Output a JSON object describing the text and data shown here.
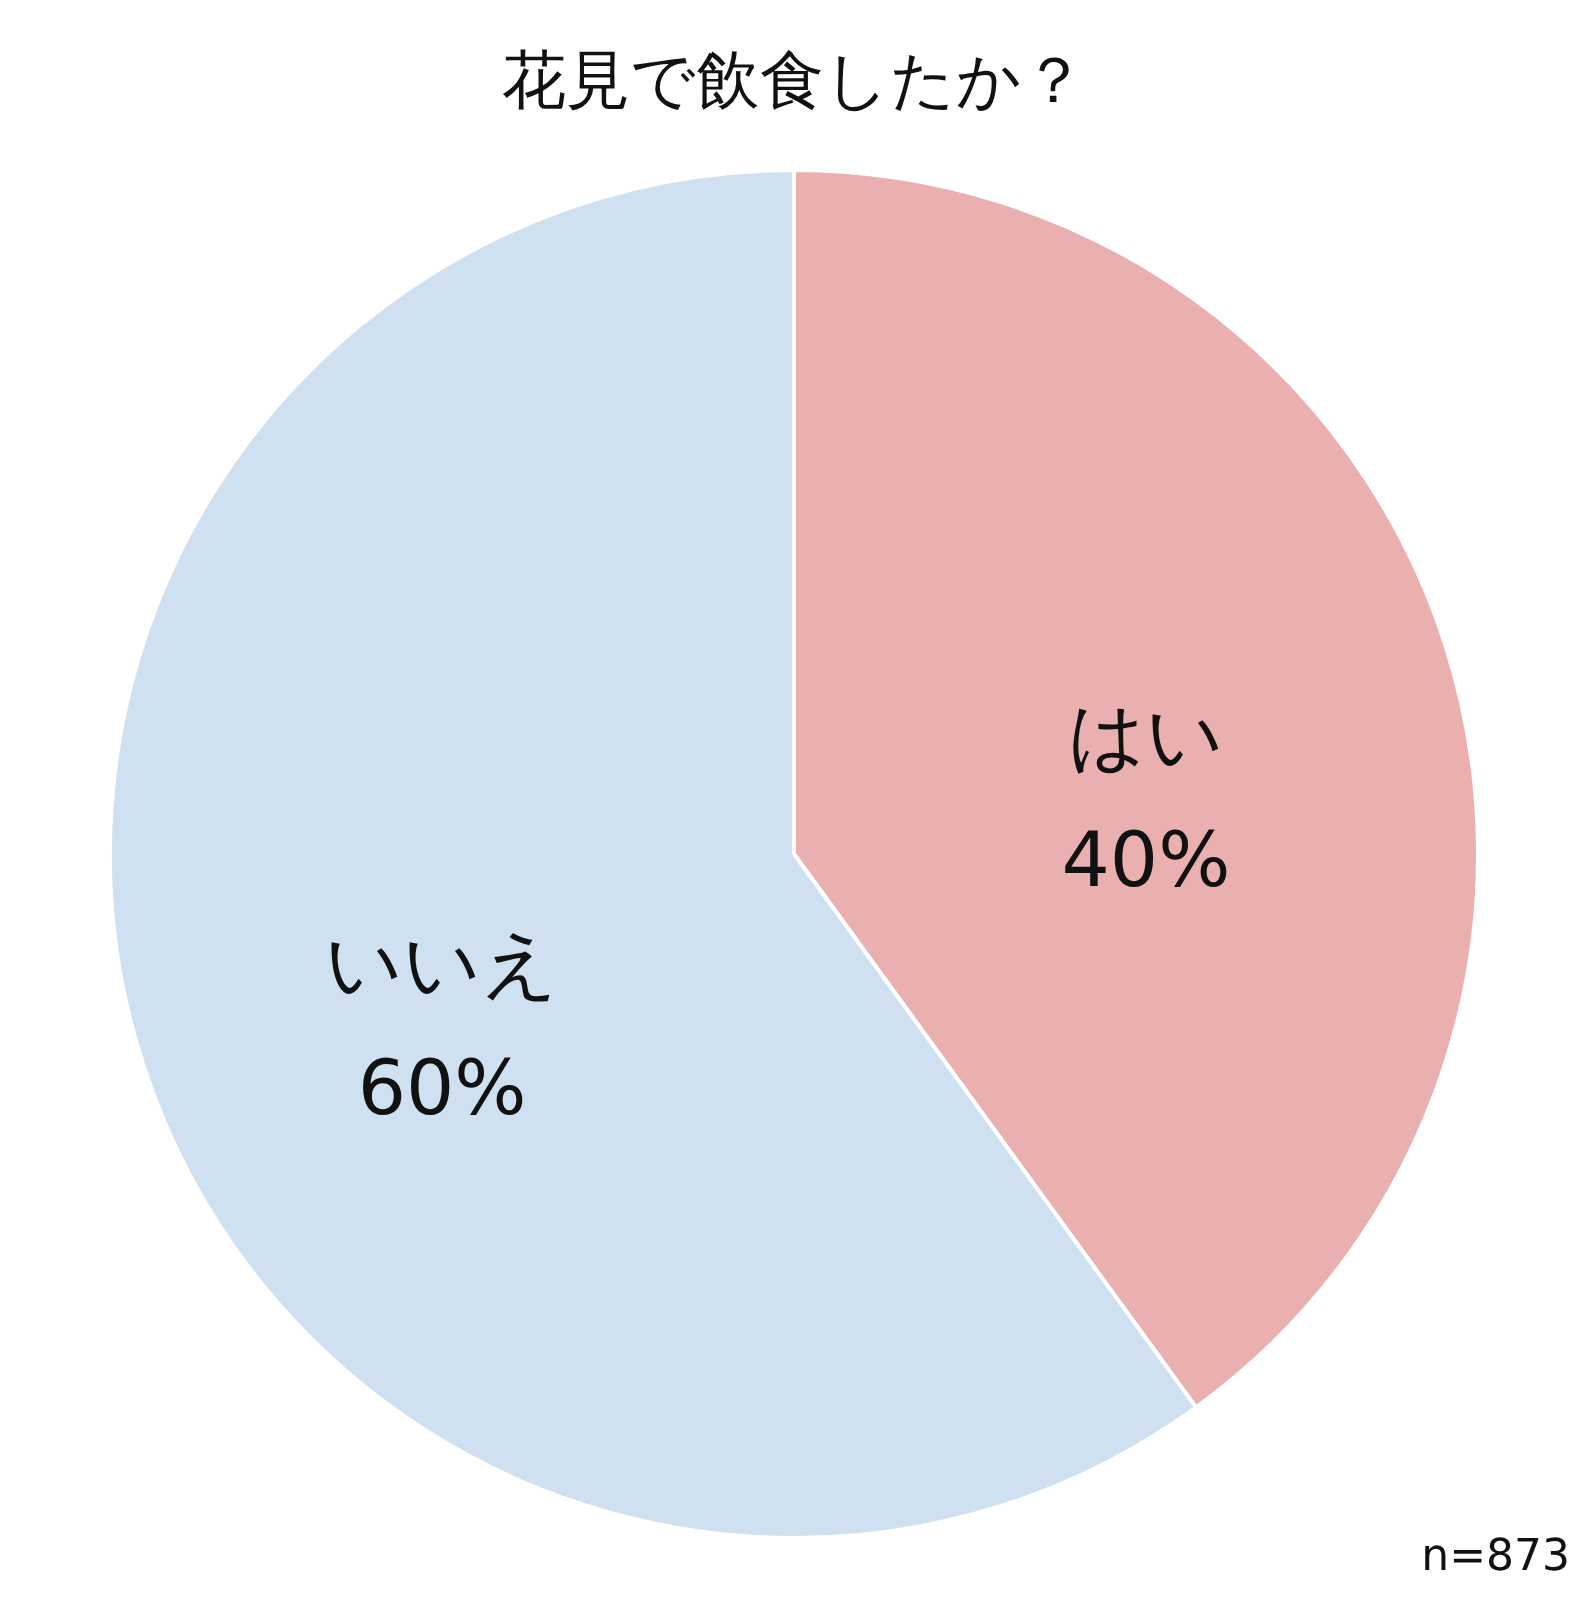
{
  "chart_data": {
    "type": "pie",
    "title": "花見で飲食したか？",
    "categories": [
      "はい",
      "いいえ"
    ],
    "values": [
      40,
      60
    ],
    "value_labels": [
      "40%",
      "60%"
    ],
    "colors": [
      "#eab0b0",
      "#cfe0f1"
    ],
    "legend": false,
    "annotations": [
      "n=873"
    ]
  }
}
